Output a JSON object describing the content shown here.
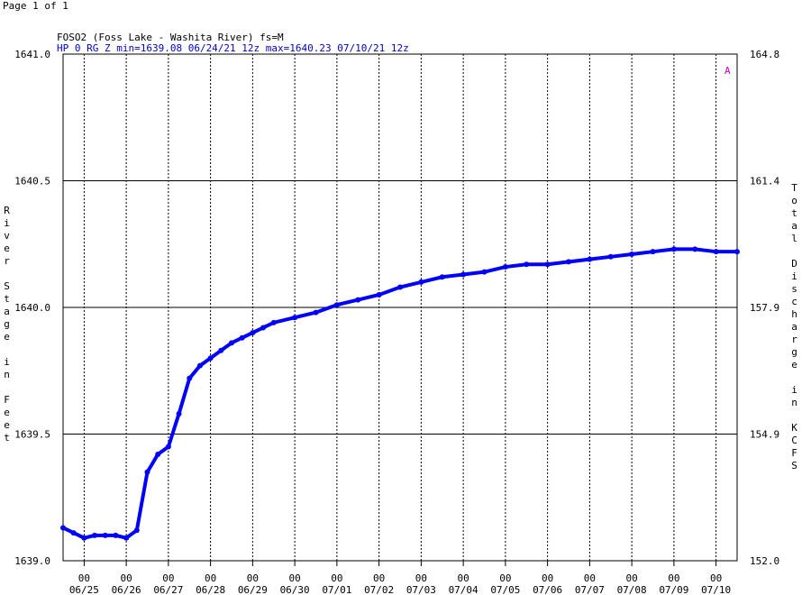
{
  "page_label": "Page 1 of 1",
  "chart_data": {
    "type": "line",
    "title": "FOSO2 (Foss Lake - Washita River) fs=M",
    "subtitle": "HP 0 RG Z min=1639.08 06/24/21 12z max=1640.23 07/10/21 12z",
    "ylabel": "River Stage in Feet",
    "y2label": "Total Discharge in KCFS",
    "annotation": "A",
    "grid": true,
    "xlim": [
      0,
      16
    ],
    "xticks": [
      {
        "value": 0.5,
        "label": "06/25"
      },
      {
        "value": 1.5,
        "label": "06/26"
      },
      {
        "value": 2.5,
        "label": "06/27"
      },
      {
        "value": 3.5,
        "label": "06/28"
      },
      {
        "value": 4.5,
        "label": "06/29"
      },
      {
        "value": 5.5,
        "label": "06/30"
      },
      {
        "value": 6.5,
        "label": "07/01"
      },
      {
        "value": 7.5,
        "label": "07/02"
      },
      {
        "value": 8.5,
        "label": "07/03"
      },
      {
        "value": 9.5,
        "label": "07/04"
      },
      {
        "value": 10.5,
        "label": "07/05"
      },
      {
        "value": 11.5,
        "label": "07/06"
      },
      {
        "value": 12.5,
        "label": "07/07"
      },
      {
        "value": 13.5,
        "label": "07/08"
      },
      {
        "value": 14.5,
        "label": "07/09"
      },
      {
        "value": 15.5,
        "label": "07/10"
      }
    ],
    "xtick_hour_label": "00",
    "ylim": [
      1639.0,
      1641.0
    ],
    "yticks": [
      {
        "value": 1641.0,
        "label": "1641.0"
      },
      {
        "value": 1640.5,
        "label": "1640.5"
      },
      {
        "value": 1640.0,
        "label": "1640.0"
      },
      {
        "value": 1639.5,
        "label": "1639.5"
      },
      {
        "value": 1639.0,
        "label": "1639.0"
      }
    ],
    "y2ticks": [
      164.8,
      161.4,
      157.9,
      154.9,
      {
        "value": 152.0,
        "label": "152.0"
      }
    ],
    "x": [
      0,
      0.25,
      0.5,
      0.75,
      1,
      1.25,
      1.5,
      1.75,
      2,
      2.25,
      2.5,
      2.75,
      3,
      3.25,
      3.5,
      3.75,
      4,
      4.25,
      4.5,
      4.75,
      5,
      5.5,
      6,
      6.5,
      7,
      7.5,
      8,
      8.5,
      9,
      9.5,
      10,
      10.5,
      11,
      11.5,
      12,
      12.5,
      13,
      13.5,
      14,
      14.5,
      15,
      15.5,
      16
    ],
    "series": [
      {
        "name": "HP",
        "color": "#0000ff",
        "values": [
          1639.13,
          1639.11,
          1639.09,
          1639.1,
          1639.1,
          1639.1,
          1639.09,
          1639.12,
          1639.35,
          1639.42,
          1639.45,
          1639.58,
          1639.72,
          1639.77,
          1639.8,
          1639.83,
          1639.86,
          1639.88,
          1639.9,
          1639.92,
          1639.94,
          1639.96,
          1639.98,
          1640.01,
          1640.03,
          1640.05,
          1640.08,
          1640.1,
          1640.12,
          1640.13,
          1640.14,
          1640.16,
          1640.17,
          1640.17,
          1640.18,
          1640.19,
          1640.2,
          1640.21,
          1640.22,
          1640.23,
          1640.23,
          1640.22,
          1640.22
        ]
      }
    ]
  }
}
